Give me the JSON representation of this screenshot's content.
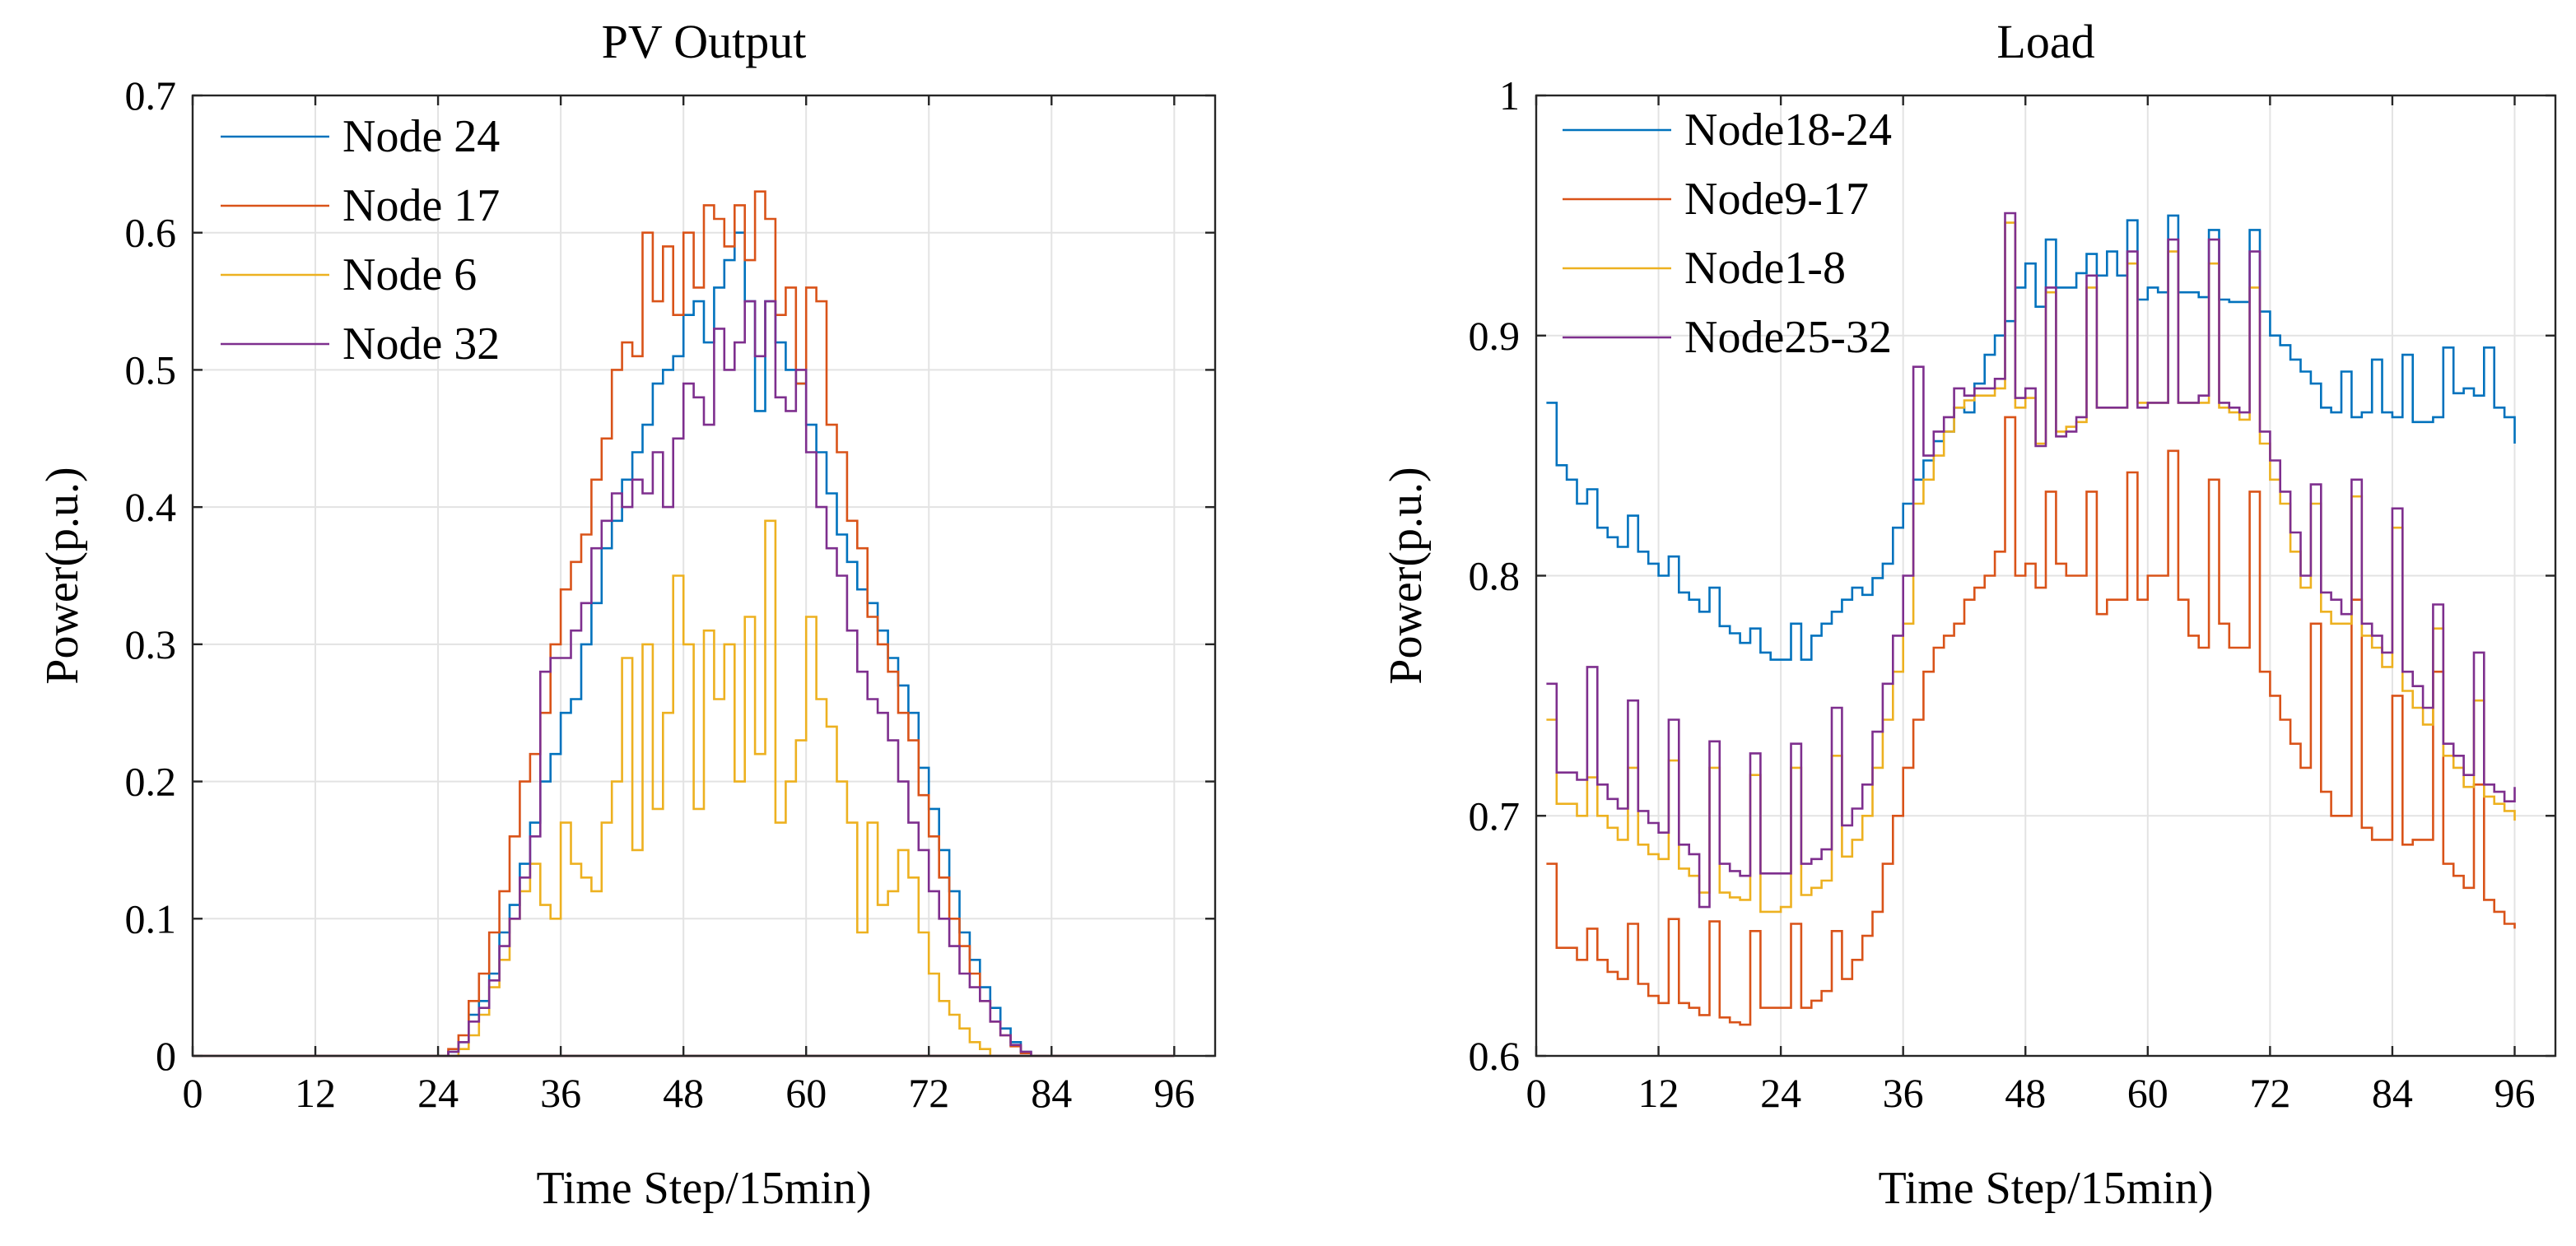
{
  "chart_data": [
    {
      "type": "line",
      "step": true,
      "title": "PV Output",
      "xlabel": "Time Step/15min)",
      "ylabel": "Power(p.u.)",
      "xlim": [
        0,
        100
      ],
      "ylim": [
        0,
        0.7
      ],
      "xticks": [
        "0",
        "12",
        "24",
        "36",
        "48",
        "60",
        "72",
        "84",
        "96"
      ],
      "yticks": [
        "0",
        "0.1",
        "0.2",
        "0.3",
        "0.4",
        "0.5",
        "0.6",
        "0.7"
      ],
      "grid": true,
      "legend_position": "top-left",
      "x": [
        1,
        2,
        3,
        4,
        5,
        6,
        7,
        8,
        9,
        10,
        11,
        12,
        13,
        14,
        15,
        16,
        17,
        18,
        19,
        20,
        21,
        22,
        23,
        24,
        25,
        26,
        27,
        28,
        29,
        30,
        31,
        32,
        33,
        34,
        35,
        36,
        37,
        38,
        39,
        40,
        41,
        42,
        43,
        44,
        45,
        46,
        47,
        48,
        49,
        50,
        51,
        52,
        53,
        54,
        55,
        56,
        57,
        58,
        59,
        60,
        61,
        62,
        63,
        64,
        65,
        66,
        67,
        68,
        69,
        70,
        71,
        72,
        73,
        74,
        75,
        76,
        77,
        78,
        79,
        80,
        81,
        82,
        83,
        84,
        85,
        86,
        87,
        88,
        89,
        90,
        91,
        92,
        93,
        94,
        95,
        96
      ],
      "series": [
        {
          "name": "Node 24",
          "color": "#0072BD",
          "values": [
            0,
            0,
            0,
            0,
            0,
            0,
            0,
            0,
            0,
            0,
            0,
            0,
            0,
            0,
            0,
            0,
            0,
            0,
            0,
            0,
            0,
            0,
            0,
            0,
            0.003,
            0.01,
            0.03,
            0.04,
            0.06,
            0.09,
            0.11,
            0.14,
            0.17,
            0.2,
            0.22,
            0.25,
            0.26,
            0.3,
            0.33,
            0.37,
            0.39,
            0.42,
            0.44,
            0.46,
            0.49,
            0.5,
            0.51,
            0.54,
            0.55,
            0.52,
            0.56,
            0.58,
            0.6,
            0.55,
            0.47,
            0.55,
            0.52,
            0.5,
            0.49,
            0.46,
            0.44,
            0.41,
            0.38,
            0.36,
            0.34,
            0.33,
            0.31,
            0.29,
            0.27,
            0.25,
            0.21,
            0.18,
            0.15,
            0.12,
            0.09,
            0.07,
            0.05,
            0.035,
            0.02,
            0.01,
            0.003,
            0,
            0,
            0,
            0,
            0,
            0,
            0,
            0,
            0,
            0,
            0,
            0,
            0,
            0,
            0
          ]
        },
        {
          "name": "Node 17",
          "color": "#D95319",
          "values": [
            0,
            0,
            0,
            0,
            0,
            0,
            0,
            0,
            0,
            0,
            0,
            0,
            0,
            0,
            0,
            0,
            0,
            0,
            0,
            0,
            0,
            0,
            0,
            0,
            0.005,
            0.015,
            0.04,
            0.06,
            0.09,
            0.12,
            0.16,
            0.2,
            0.22,
            0.25,
            0.3,
            0.34,
            0.36,
            0.38,
            0.42,
            0.45,
            0.5,
            0.52,
            0.51,
            0.6,
            0.55,
            0.59,
            0.54,
            0.6,
            0.56,
            0.62,
            0.61,
            0.59,
            0.62,
            0.58,
            0.63,
            0.61,
            0.54,
            0.56,
            0.49,
            0.56,
            0.55,
            0.46,
            0.44,
            0.39,
            0.37,
            0.32,
            0.3,
            0.28,
            0.25,
            0.23,
            0.19,
            0.16,
            0.13,
            0.1,
            0.08,
            0.06,
            0.04,
            0.025,
            0.015,
            0.007,
            0.002,
            0,
            0,
            0,
            0,
            0,
            0,
            0,
            0,
            0,
            0,
            0,
            0,
            0,
            0,
            0
          ]
        },
        {
          "name": "Node 6",
          "color": "#EDB120",
          "values": [
            0,
            0,
            0,
            0,
            0,
            0,
            0,
            0,
            0,
            0,
            0,
            0,
            0,
            0,
            0,
            0,
            0,
            0,
            0,
            0,
            0,
            0,
            0,
            0,
            0,
            0.005,
            0.015,
            0.03,
            0.05,
            0.07,
            0.1,
            0.12,
            0.14,
            0.11,
            0.1,
            0.17,
            0.14,
            0.13,
            0.12,
            0.17,
            0.2,
            0.29,
            0.15,
            0.3,
            0.18,
            0.25,
            0.35,
            0.3,
            0.18,
            0.31,
            0.26,
            0.3,
            0.2,
            0.32,
            0.22,
            0.39,
            0.17,
            0.2,
            0.23,
            0.32,
            0.26,
            0.24,
            0.2,
            0.17,
            0.09,
            0.17,
            0.11,
            0.12,
            0.15,
            0.13,
            0.09,
            0.06,
            0.04,
            0.03,
            0.02,
            0.01,
            0.005,
            0,
            0,
            0,
            0,
            0,
            0,
            0,
            0,
            0,
            0,
            0,
            0,
            0,
            0,
            0,
            0,
            0,
            0,
            0
          ]
        },
        {
          "name": "Node 32",
          "color": "#7E2F8E",
          "values": [
            0,
            0,
            0,
            0,
            0,
            0,
            0,
            0,
            0,
            0,
            0,
            0,
            0,
            0,
            0,
            0,
            0,
            0,
            0,
            0,
            0,
            0,
            0,
            0,
            0.003,
            0.01,
            0.025,
            0.035,
            0.055,
            0.08,
            0.1,
            0.13,
            0.16,
            0.28,
            0.29,
            0.29,
            0.31,
            0.33,
            0.37,
            0.39,
            0.41,
            0.4,
            0.42,
            0.41,
            0.44,
            0.4,
            0.45,
            0.49,
            0.48,
            0.46,
            0.53,
            0.5,
            0.52,
            0.55,
            0.51,
            0.55,
            0.48,
            0.47,
            0.5,
            0.44,
            0.4,
            0.37,
            0.35,
            0.31,
            0.28,
            0.26,
            0.25,
            0.23,
            0.2,
            0.17,
            0.15,
            0.12,
            0.1,
            0.08,
            0.06,
            0.05,
            0.04,
            0.025,
            0.015,
            0.008,
            0.003,
            0,
            0,
            0,
            0,
            0,
            0,
            0,
            0,
            0,
            0,
            0,
            0,
            0,
            0,
            0
          ]
        }
      ]
    },
    {
      "type": "line",
      "step": true,
      "title": "Load",
      "xlabel": "Time Step/15min)",
      "ylabel": "Power(p.u.)",
      "xlim": [
        0,
        100
      ],
      "ylim": [
        0.6,
        1
      ],
      "xticks": [
        "0",
        "12",
        "24",
        "36",
        "48",
        "60",
        "72",
        "84",
        "96"
      ],
      "yticks": [
        "0.6",
        "0.7",
        "0.8",
        "0.9",
        "1"
      ],
      "grid": true,
      "legend_position": "top-left",
      "x": [
        1,
        2,
        3,
        4,
        5,
        6,
        7,
        8,
        9,
        10,
        11,
        12,
        13,
        14,
        15,
        16,
        17,
        18,
        19,
        20,
        21,
        22,
        23,
        24,
        25,
        26,
        27,
        28,
        29,
        30,
        31,
        32,
        33,
        34,
        35,
        36,
        37,
        38,
        39,
        40,
        41,
        42,
        43,
        44,
        45,
        46,
        47,
        48,
        49,
        50,
        51,
        52,
        53,
        54,
        55,
        56,
        57,
        58,
        59,
        60,
        61,
        62,
        63,
        64,
        65,
        66,
        67,
        68,
        69,
        70,
        71,
        72,
        73,
        74,
        75,
        76,
        77,
        78,
        79,
        80,
        81,
        82,
        83,
        84,
        85,
        86,
        87,
        88,
        89,
        90,
        91,
        92,
        93,
        94,
        95,
        96
      ],
      "series": [
        {
          "name": "Node18-24",
          "color": "#0072BD",
          "values": [
            0.872,
            0.846,
            0.84,
            0.83,
            0.836,
            0.82,
            0.816,
            0.812,
            0.825,
            0.81,
            0.805,
            0.8,
            0.808,
            0.793,
            0.79,
            0.785,
            0.795,
            0.779,
            0.776,
            0.772,
            0.778,
            0.768,
            0.765,
            0.765,
            0.78,
            0.765,
            0.775,
            0.78,
            0.785,
            0.79,
            0.795,
            0.792,
            0.799,
            0.805,
            0.82,
            0.83,
            0.84,
            0.848,
            0.856,
            0.86,
            0.87,
            0.868,
            0.88,
            0.892,
            0.9,
            0.906,
            0.92,
            0.93,
            0.912,
            0.94,
            0.92,
            0.92,
            0.926,
            0.934,
            0.925,
            0.935,
            0.925,
            0.948,
            0.915,
            0.92,
            0.918,
            0.95,
            0.918,
            0.918,
            0.916,
            0.944,
            0.915,
            0.914,
            0.914,
            0.944,
            0.91,
            0.9,
            0.896,
            0.89,
            0.885,
            0.88,
            0.87,
            0.868,
            0.885,
            0.866,
            0.868,
            0.89,
            0.868,
            0.866,
            0.892,
            0.864,
            0.864,
            0.866,
            0.895,
            0.876,
            0.878,
            0.875,
            0.895,
            0.87,
            0.866,
            0.855
          ]
        },
        {
          "name": "Node9-17",
          "color": "#D95319",
          "values": [
            0.68,
            0.645,
            0.645,
            0.64,
            0.653,
            0.64,
            0.635,
            0.632,
            0.655,
            0.63,
            0.625,
            0.622,
            0.657,
            0.622,
            0.62,
            0.617,
            0.656,
            0.616,
            0.614,
            0.613,
            0.652,
            0.62,
            0.62,
            0.62,
            0.655,
            0.62,
            0.623,
            0.627,
            0.652,
            0.632,
            0.64,
            0.65,
            0.66,
            0.68,
            0.7,
            0.72,
            0.74,
            0.76,
            0.77,
            0.775,
            0.78,
            0.79,
            0.795,
            0.8,
            0.81,
            0.866,
            0.8,
            0.805,
            0.795,
            0.835,
            0.805,
            0.8,
            0.8,
            0.835,
            0.784,
            0.79,
            0.79,
            0.843,
            0.79,
            0.8,
            0.8,
            0.852,
            0.79,
            0.775,
            0.77,
            0.84,
            0.78,
            0.77,
            0.77,
            0.835,
            0.76,
            0.75,
            0.74,
            0.73,
            0.72,
            0.78,
            0.71,
            0.7,
            0.7,
            0.79,
            0.695,
            0.69,
            0.69,
            0.75,
            0.688,
            0.69,
            0.69,
            0.76,
            0.68,
            0.675,
            0.67,
            0.713,
            0.665,
            0.66,
            0.655,
            0.653
          ]
        },
        {
          "name": "Node1-8",
          "color": "#EDB120",
          "values": [
            0.74,
            0.705,
            0.705,
            0.7,
            0.716,
            0.7,
            0.695,
            0.69,
            0.72,
            0.688,
            0.684,
            0.682,
            0.723,
            0.678,
            0.675,
            0.668,
            0.72,
            0.668,
            0.666,
            0.665,
            0.717,
            0.66,
            0.66,
            0.662,
            0.72,
            0.667,
            0.67,
            0.673,
            0.725,
            0.683,
            0.69,
            0.7,
            0.72,
            0.74,
            0.76,
            0.78,
            0.83,
            0.84,
            0.85,
            0.86,
            0.87,
            0.873,
            0.875,
            0.875,
            0.878,
            0.947,
            0.87,
            0.874,
            0.855,
            0.918,
            0.86,
            0.862,
            0.864,
            0.92,
            0.87,
            0.87,
            0.87,
            0.93,
            0.872,
            0.872,
            0.872,
            0.935,
            0.872,
            0.872,
            0.872,
            0.93,
            0.87,
            0.868,
            0.865,
            0.92,
            0.855,
            0.84,
            0.83,
            0.81,
            0.795,
            0.83,
            0.785,
            0.78,
            0.78,
            0.833,
            0.775,
            0.77,
            0.762,
            0.82,
            0.752,
            0.745,
            0.738,
            0.778,
            0.725,
            0.72,
            0.712,
            0.748,
            0.708,
            0.705,
            0.702,
            0.698
          ]
        },
        {
          "name": "Node25-32",
          "color": "#7E2F8E",
          "values": [
            0.755,
            0.718,
            0.718,
            0.715,
            0.762,
            0.713,
            0.707,
            0.703,
            0.748,
            0.702,
            0.697,
            0.693,
            0.74,
            0.688,
            0.684,
            0.662,
            0.731,
            0.68,
            0.677,
            0.675,
            0.726,
            0.676,
            0.676,
            0.676,
            0.73,
            0.68,
            0.682,
            0.686,
            0.745,
            0.696,
            0.703,
            0.713,
            0.735,
            0.755,
            0.775,
            0.8,
            0.887,
            0.85,
            0.86,
            0.866,
            0.878,
            0.875,
            0.878,
            0.878,
            0.882,
            0.951,
            0.874,
            0.878,
            0.854,
            0.92,
            0.858,
            0.86,
            0.866,
            0.925,
            0.87,
            0.87,
            0.87,
            0.935,
            0.87,
            0.872,
            0.872,
            0.94,
            0.872,
            0.872,
            0.875,
            0.94,
            0.872,
            0.87,
            0.868,
            0.935,
            0.86,
            0.848,
            0.835,
            0.818,
            0.8,
            0.838,
            0.793,
            0.79,
            0.784,
            0.84,
            0.78,
            0.775,
            0.768,
            0.828,
            0.76,
            0.754,
            0.745,
            0.788,
            0.73,
            0.725,
            0.717,
            0.768,
            0.713,
            0.71,
            0.706,
            0.712
          ]
        }
      ]
    }
  ]
}
